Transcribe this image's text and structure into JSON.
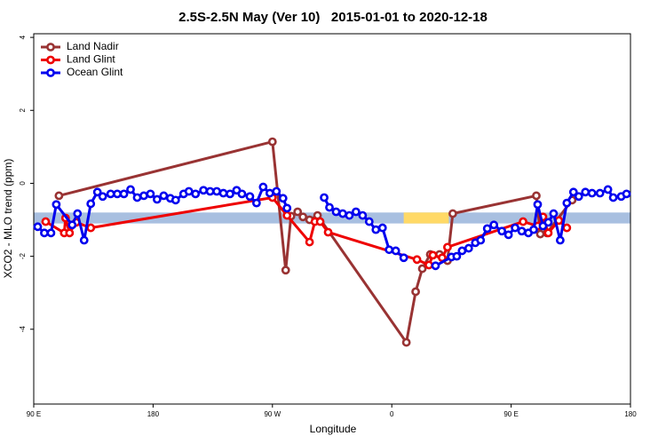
{
  "chart_data": {
    "type": "line",
    "title": "2.5S-2.5N May (Ver 10)   2015-01-01 to 2020-12-18",
    "xlabel": "Longitude",
    "ylabel": "XCO2 - MLO trend (ppm)",
    "xlim": [
      90,
      540
    ],
    "ylim": [
      -6.05,
      4.1
    ],
    "xticks": [
      {
        "value": 90,
        "label": "90 E"
      },
      {
        "value": 180,
        "label": "180"
      },
      {
        "value": 270,
        "label": "90 W"
      },
      {
        "value": 360,
        "label": "0"
      },
      {
        "value": 450,
        "label": "90 E"
      },
      {
        "value": 540,
        "label": "180"
      }
    ],
    "yticks": [
      -4,
      -2,
      0,
      2,
      4
    ],
    "legend": "upper left",
    "bands": [
      {
        "color": "#a8bfe0",
        "ylim": [
          -1.1,
          -0.8
        ]
      },
      {
        "color": "#ffd966",
        "xlim": [
          369,
          403
        ],
        "ylim": [
          -1.1,
          -0.8
        ]
      }
    ],
    "series": [
      {
        "name": "Land Nadir",
        "color": "#993333",
        "x": [
          109,
          270,
          280,
          284,
          289,
          293,
          298,
          304,
          371,
          378,
          383,
          389,
          396,
          402,
          406,
          469,
          472,
          477,
          496
        ],
        "values": [
          -0.34,
          1.14,
          -2.38,
          -0.9,
          -0.78,
          -0.92,
          -1.0,
          -0.88,
          -4.36,
          -2.97,
          -2.34,
          -1.95,
          -1.95,
          -2.12,
          -0.83,
          -0.34,
          -1.39,
          -1.36,
          -0.46
        ]
      },
      {
        "name": "Land Glint",
        "color": "#ee0000",
        "x": [
          99,
          113,
          114,
          117,
          122,
          133,
          270,
          281,
          298,
          302,
          306,
          312,
          379,
          388,
          391,
          398,
          402,
          459,
          470,
          474,
          478,
          486,
          492
        ],
        "values": [
          -1.05,
          -1.36,
          -0.95,
          -1.36,
          -1.07,
          -1.22,
          -0.39,
          -0.88,
          -1.61,
          -1.05,
          -1.05,
          -1.34,
          -2.09,
          -2.24,
          -1.97,
          -2.04,
          -1.75,
          -1.05,
          -1.17,
          -0.92,
          -1.36,
          -1.02,
          -1.22
        ]
      },
      {
        "name": "Ocean Glint",
        "color": "#0000ee",
        "x": [
          93,
          98,
          103,
          107,
          119,
          123,
          128,
          133,
          138,
          142,
          148,
          153,
          158,
          163,
          168,
          173,
          178,
          183,
          188,
          193,
          197,
          203,
          207,
          212,
          218,
          223,
          228,
          233,
          238,
          243,
          247,
          253,
          258,
          263,
          268,
          273,
          278,
          281,
          295,
          309,
          313,
          318,
          323,
          328,
          333,
          338,
          343,
          348,
          353,
          358,
          363,
          369,
          381,
          393,
          405,
          409,
          413,
          418,
          423,
          427,
          432,
          437,
          443,
          448,
          453,
          458,
          463,
          467,
          470,
          474,
          478,
          482,
          487,
          492,
          497,
          501,
          506,
          511,
          517,
          523,
          527,
          533,
          537
        ],
        "values": [
          -1.19,
          -1.36,
          -1.36,
          -0.58,
          -1.14,
          -0.83,
          -1.56,
          -0.56,
          -0.24,
          -0.36,
          -0.29,
          -0.29,
          -0.29,
          -0.17,
          -0.39,
          -0.34,
          -0.29,
          -0.44,
          -0.34,
          -0.41,
          -0.46,
          -0.29,
          -0.22,
          -0.29,
          -0.19,
          -0.22,
          -0.22,
          -0.27,
          -0.29,
          -0.19,
          -0.29,
          -0.36,
          -0.54,
          -0.1,
          -0.27,
          -0.22,
          -0.41,
          -0.68,
          null,
          -0.39,
          -0.66,
          -0.78,
          -0.83,
          -0.88,
          -0.78,
          -0.88,
          -1.05,
          -1.27,
          -1.22,
          -1.82,
          -1.85,
          -2.04,
          null,
          -2.26,
          -2.02,
          -2.0,
          -1.85,
          -1.78,
          -1.63,
          -1.56,
          -1.24,
          -1.14,
          -1.31,
          -1.41,
          -1.22,
          -1.31,
          -1.36,
          -1.27,
          -0.58,
          -1.17,
          -1.07,
          -0.83,
          -1.56,
          -0.54,
          -0.24,
          -0.36,
          -0.24,
          -0.27,
          -0.27,
          -0.17,
          -0.39,
          -0.36,
          -0.29
        ]
      }
    ]
  }
}
